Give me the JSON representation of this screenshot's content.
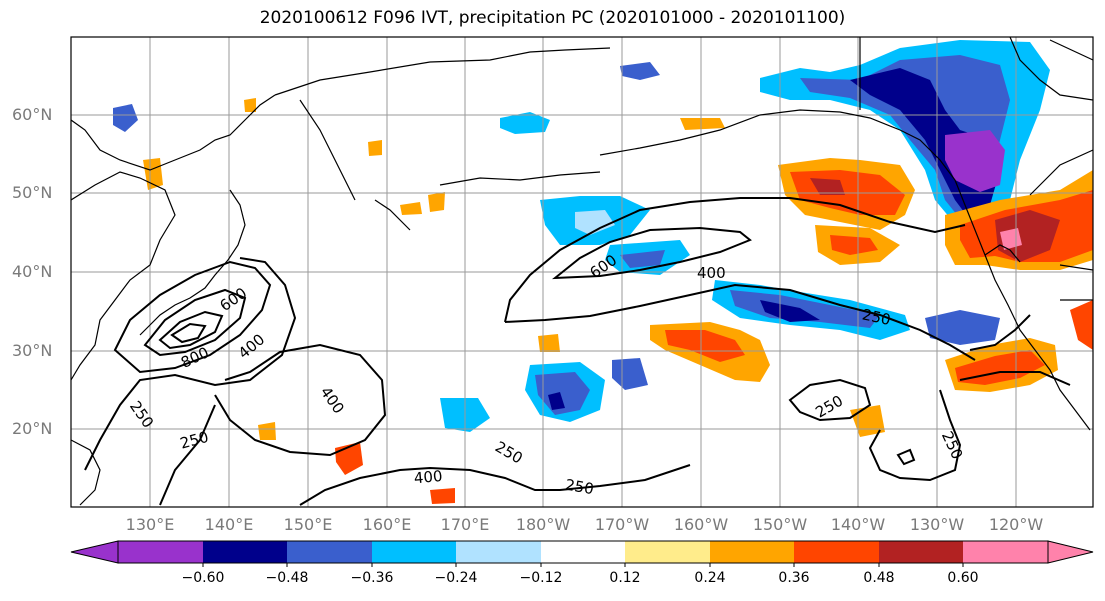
{
  "title": "2020100612 F096 IVT, precipitation PC (2020101000 - 2020101100)",
  "axes": {
    "lat_labels": [
      "60°N",
      "50°N",
      "40°N",
      "30°N",
      "20°N"
    ],
    "lon_labels": [
      "130°E",
      "140°E",
      "150°E",
      "160°E",
      "170°E",
      "180°W",
      "170°W",
      "160°W",
      "150°W",
      "140°W",
      "130°W",
      "120°W"
    ],
    "grid": true
  },
  "colorbar": {
    "ticks": [
      "−0.60",
      "−0.48",
      "−0.36",
      "−0.24",
      "−0.12",
      "0.12",
      "0.24",
      "0.36",
      "0.48",
      "0.60"
    ],
    "colors": [
      "#9932cc",
      "#00008b",
      "#3a5fcd",
      "#00bfff",
      "#b0e2ff",
      "#ffffff",
      "#ffec8b",
      "#ffa500",
      "#ff4500",
      "#b22222",
      "#ff82ab"
    ]
  },
  "contour_labels": [
    "800",
    "600",
    "400",
    "250",
    "250",
    "400",
    "600",
    "400",
    "250",
    "250",
    "400",
    "250",
    "250",
    "250"
  ],
  "chart_data": {
    "type": "heatmap",
    "title": "2020100612 F096 IVT, precipitation PC (2020101000 - 2020101100)",
    "fields": [
      "precipitation PC (filled)",
      "IVT (contours)"
    ],
    "colorbar_ticks": [
      -0.6,
      -0.48,
      -0.36,
      -0.24,
      -0.12,
      0.12,
      0.24,
      0.36,
      0.48,
      0.6
    ],
    "ivt_contour_levels": [
      250,
      400,
      600,
      800
    ],
    "lon_range": [
      "120°E",
      "115°W"
    ],
    "lat_range": [
      "10°N",
      "70°N"
    ]
  }
}
